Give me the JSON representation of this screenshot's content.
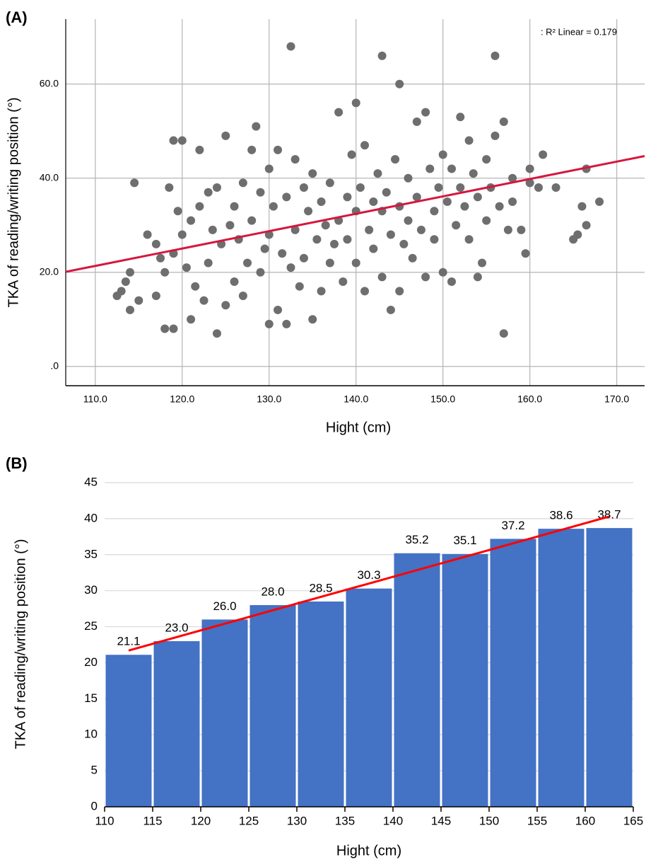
{
  "chart_data": [
    {
      "type": "scatter",
      "panel_label": "(A)",
      "x_label": "Hight (cm)",
      "y_label": "TKA of reading/writing position (°)",
      "annotation": ": R² Linear = 0.179",
      "color": "#6e6e6e",
      "grid": "both",
      "xlim": [
        106.6,
        173.2
      ],
      "ylim": [
        -4.1,
        73.8
      ],
      "xticks": [
        {
          "value": 110,
          "label": "110.0"
        },
        {
          "value": 120,
          "label": "120.0"
        },
        {
          "value": 130,
          "label": "130.0"
        },
        {
          "value": 140,
          "label": "140.0"
        },
        {
          "value": 150,
          "label": "150.0"
        },
        {
          "value": 160,
          "label": "160.0"
        },
        {
          "value": 170,
          "label": "170.0"
        }
      ],
      "yticks": [
        {
          "value": 0,
          "label": ".0"
        },
        {
          "value": 20,
          "label": "20.0"
        },
        {
          "value": 40,
          "label": "40.0"
        },
        {
          "value": 60,
          "label": "60.0"
        }
      ],
      "x": [
        112.5,
        113,
        113.5,
        114,
        114,
        114.5,
        115,
        116,
        117,
        117,
        117.5,
        118,
        118,
        118.5,
        119,
        119,
        119,
        119.5,
        120,
        120,
        120.5,
        121,
        121,
        121.5,
        122,
        122,
        122.5,
        123,
        123,
        123.5,
        124,
        124,
        124.5,
        125,
        125,
        125.5,
        126,
        126,
        126.5,
        127,
        127,
        127.5,
        128,
        128,
        128.5,
        129,
        129,
        129.5,
        130,
        130,
        130,
        130.5,
        131,
        131,
        131.5,
        132,
        132,
        132.5,
        132.5,
        133,
        133,
        133.5,
        134,
        134,
        134.5,
        135,
        135,
        135.5,
        136,
        136,
        136.5,
        137,
        137,
        137.5,
        138,
        138,
        138.5,
        139,
        139,
        139.5,
        140,
        140,
        140,
        140.5,
        141,
        141,
        141.5,
        142,
        142,
        142.5,
        143,
        143,
        143,
        143.5,
        144,
        144,
        144.5,
        145,
        145,
        145,
        145.5,
        146,
        146,
        146.5,
        147,
        147,
        147.5,
        148,
        148,
        148.5,
        149,
        149,
        149.5,
        150,
        150,
        150.5,
        151,
        151,
        151.5,
        152,
        152,
        152.5,
        153,
        153,
        153.5,
        154,
        154,
        154.5,
        155,
        155,
        155.5,
        156,
        156,
        156.5,
        157,
        157,
        157.5,
        158,
        158,
        159,
        159.5,
        160,
        160,
        161,
        161.5,
        163,
        165,
        165.5,
        166,
        166.5,
        166.5,
        168
      ],
      "values": [
        15,
        16,
        18,
        12,
        20,
        39,
        14,
        28,
        15,
        26,
        23,
        8,
        20,
        38,
        8,
        48,
        24,
        33,
        48,
        28,
        21,
        10,
        31,
        17,
        46,
        34,
        14,
        37,
        22,
        29,
        7,
        38,
        26,
        13,
        49,
        30,
        18,
        34,
        27,
        15,
        39,
        22,
        46,
        31,
        51,
        20,
        37,
        25,
        9,
        28,
        42,
        34,
        12,
        46,
        24,
        9,
        36,
        68,
        21,
        29,
        44,
        17,
        38,
        23,
        33,
        10,
        41,
        27,
        16,
        35,
        30,
        22,
        39,
        26,
        54,
        31,
        18,
        36,
        27,
        45,
        56,
        33,
        22,
        38,
        16,
        47,
        29,
        35,
        25,
        41,
        66,
        19,
        33,
        37,
        12,
        28,
        44,
        60,
        16,
        34,
        26,
        40,
        31,
        23,
        52,
        36,
        29,
        54,
        19,
        42,
        33,
        27,
        38,
        45,
        20,
        35,
        18,
        42,
        30,
        53,
        38,
        34,
        48,
        27,
        41,
        19,
        36,
        22,
        31,
        44,
        38,
        66,
        49,
        34,
        7,
        52,
        29,
        35,
        40,
        29,
        24,
        42,
        39,
        38,
        45,
        38,
        27,
        28,
        34,
        30,
        42,
        35
      ],
      "fit_line": {
        "color": "#d6173e",
        "x": [
          106.6,
          173.2
        ],
        "values": [
          20.1,
          44.7
        ]
      }
    },
    {
      "type": "histogram",
      "panel_label": "(B)",
      "x_label": "Hight (cm)",
      "y_label": "TKA of reading/writing position (°)",
      "color": "#4472c4",
      "grid": "y",
      "xlim": [
        110,
        165
      ],
      "ylim": [
        0,
        45
      ],
      "xticks": [
        110,
        115,
        120,
        125,
        130,
        135,
        140,
        145,
        150,
        155,
        160,
        165
      ],
      "yticks": [
        0,
        5,
        10,
        15,
        20,
        25,
        30,
        35,
        40,
        45
      ],
      "bins": [
        110,
        115,
        120,
        125,
        130,
        135,
        140,
        145,
        150,
        155,
        160,
        165
      ],
      "values": [
        21.1,
        23.0,
        26.0,
        28.0,
        28.5,
        30.3,
        35.2,
        35.1,
        37.2,
        38.6,
        38.7
      ],
      "value_labels": [
        "21.1",
        "23.0",
        "26.0",
        "28.0",
        "28.5",
        "30.3",
        "35.2",
        "35.1",
        "37.2",
        "38.6",
        "38.7"
      ],
      "fit_line": {
        "color": "#ff0000",
        "x": [
          112.5,
          162.5
        ],
        "values": [
          21.7,
          40.3
        ]
      }
    }
  ]
}
